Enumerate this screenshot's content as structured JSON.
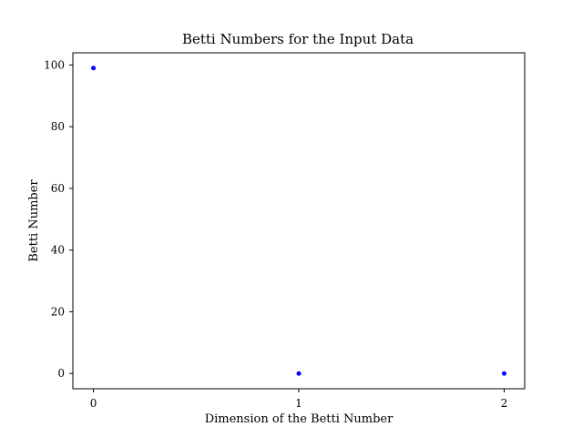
{
  "chart_data": {
    "type": "scatter",
    "title": "Betti Numbers for the Input Data",
    "xlabel": "Dimension of the Betti Number",
    "ylabel": "Betti Number",
    "x": [
      0,
      1,
      2
    ],
    "y": [
      99,
      0,
      0
    ],
    "xticks": [
      0,
      1,
      2
    ],
    "xtick_labels": [
      "0",
      "1",
      "2"
    ],
    "yticks": [
      0,
      20,
      40,
      60,
      80,
      100
    ],
    "ytick_labels": [
      "0",
      "20",
      "40",
      "60",
      "80",
      "100"
    ],
    "xlim": [
      -0.1,
      2.1
    ],
    "ylim": [
      -4.95,
      103.95
    ],
    "marker_color": "#0000ff",
    "grid": false,
    "legend": "none"
  }
}
